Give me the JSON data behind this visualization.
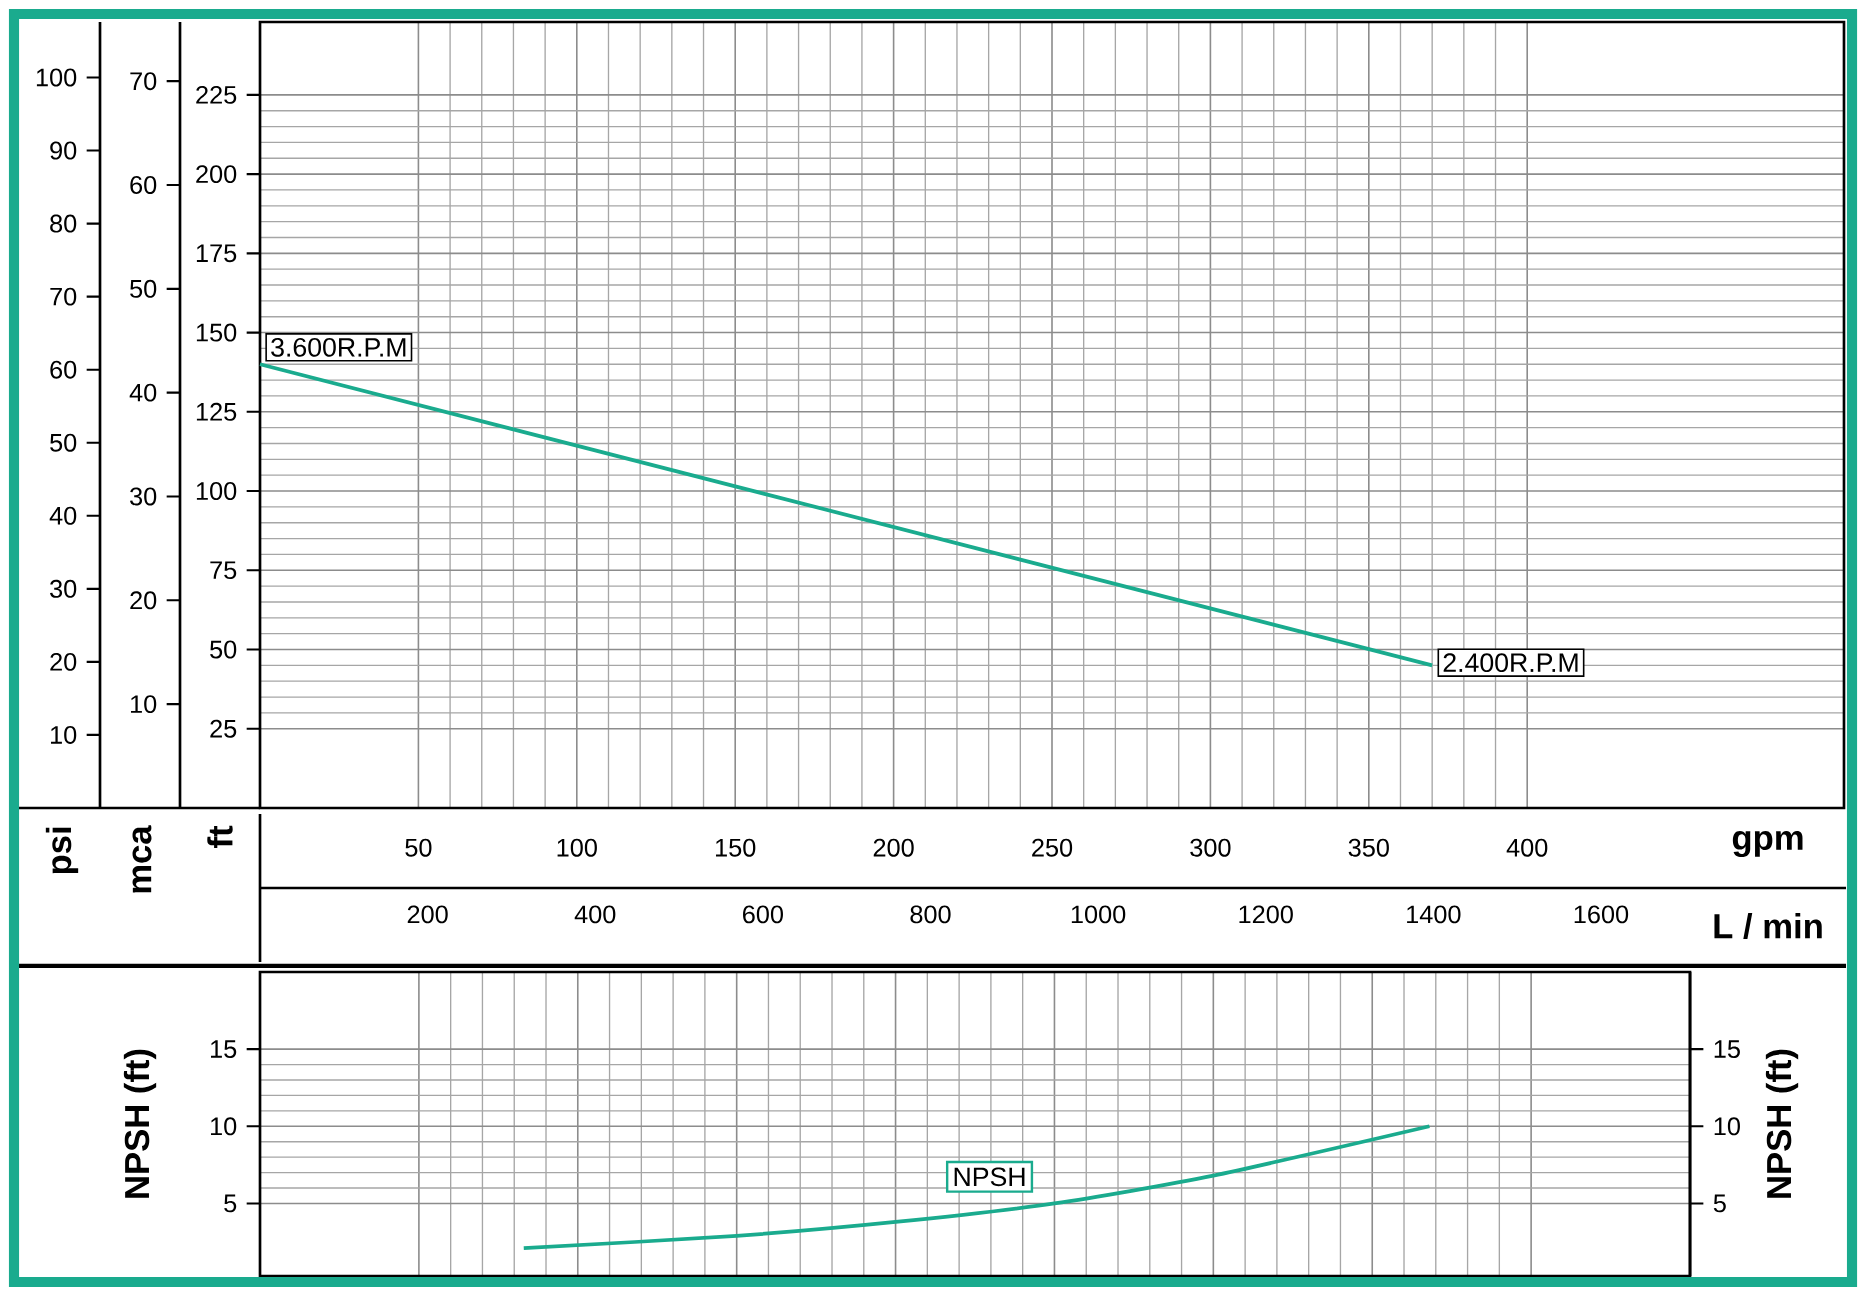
{
  "chart_data": [
    {
      "type": "line",
      "xlabel": "gpm",
      "x2label": "L / min",
      "ylabel": "ft",
      "y2label": "mca",
      "y3label": "psi",
      "xlim": [
        0,
        500
      ],
      "xticks": [
        50,
        100,
        150,
        200,
        250,
        300,
        350,
        400
      ],
      "x2lim": [
        0,
        1890
      ],
      "x2ticks": [
        200,
        400,
        600,
        800,
        1000,
        1200,
        1400,
        1600
      ],
      "ylim": [
        0,
        248
      ],
      "yticks": [
        25,
        50,
        75,
        100,
        125,
        150,
        175,
        200,
        225
      ],
      "y2lim": [
        0,
        75.7
      ],
      "y2ticks": [
        10,
        20,
        30,
        40,
        50,
        60,
        70
      ],
      "y3lim": [
        0,
        107.6
      ],
      "y3ticks": [
        10,
        20,
        30,
        40,
        50,
        60,
        70,
        80,
        90,
        100
      ],
      "grid": true,
      "x": [
        0,
        370
      ],
      "series": [
        {
          "color": "#1aab8e",
          "values": [
            140,
            45
          ]
        }
      ],
      "annotations": [
        {
          "text": "3.600R.P.M",
          "x": 0,
          "y": 140
        },
        {
          "text": "2.400R.P.M",
          "x": 370,
          "y": 45
        }
      ]
    },
    {
      "type": "line",
      "ylabel": "NPSH (ft)",
      "y2label": "NPSH (ft)",
      "xlim": [
        0,
        450
      ],
      "xticks": [
        50,
        100,
        150,
        200,
        250,
        300,
        350,
        400
      ],
      "ylim": [
        0.3,
        20
      ],
      "yticks": [
        5,
        10,
        15
      ],
      "y2lim": [
        0.3,
        20
      ],
      "y2ticks": [
        5,
        10,
        15
      ],
      "tick_labels": "y",
      "grid": true,
      "series": [
        {
          "name": "NPSH",
          "color": "#1aab8e",
          "x": [
            83,
            150,
            200,
            250,
            300,
            368
          ],
          "values": [
            2.1,
            2.9,
            3.8,
            5.0,
            6.8,
            10.0
          ]
        }
      ]
    }
  ]
}
